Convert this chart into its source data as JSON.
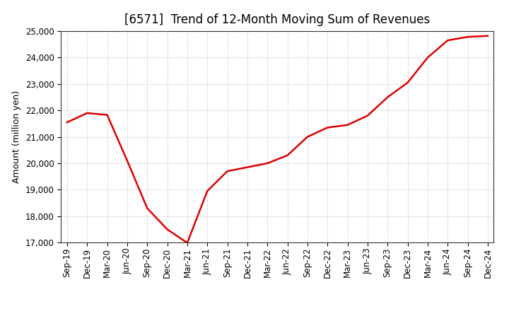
{
  "title": "[6571]  Trend of 12-Month Moving Sum of Revenues",
  "ylabel": "Amount (million yen)",
  "line_color": "#dd0000",
  "line_width": 1.8,
  "background_color": "#ffffff",
  "grid_color": "#999999",
  "ylim": [
    17000,
    25000
  ],
  "yticks": [
    17000,
    18000,
    19000,
    20000,
    21000,
    22000,
    23000,
    24000,
    25000
  ],
  "values": [
    21550,
    21900,
    21830,
    20100,
    18300,
    17500,
    16990,
    18950,
    19700,
    19850,
    20000,
    20300,
    21000,
    21350,
    21450,
    21800,
    22500,
    23050,
    24000,
    24650,
    24780,
    24820
  ],
  "xtick_labels": [
    "Sep-19",
    "Dec-19",
    "Mar-20",
    "Jun-20",
    "Sep-20",
    "Dec-20",
    "Mar-21",
    "Jun-21",
    "Sep-21",
    "Dec-21",
    "Mar-22",
    "Jun-22",
    "Sep-22",
    "Dec-22",
    "Mar-23",
    "Jun-23",
    "Sep-23",
    "Dec-23",
    "Mar-24",
    "Jun-24",
    "Sep-24",
    "Dec-24"
  ],
  "title_fontsize": 12,
  "ylabel_fontsize": 9,
  "tick_fontsize": 8.5
}
